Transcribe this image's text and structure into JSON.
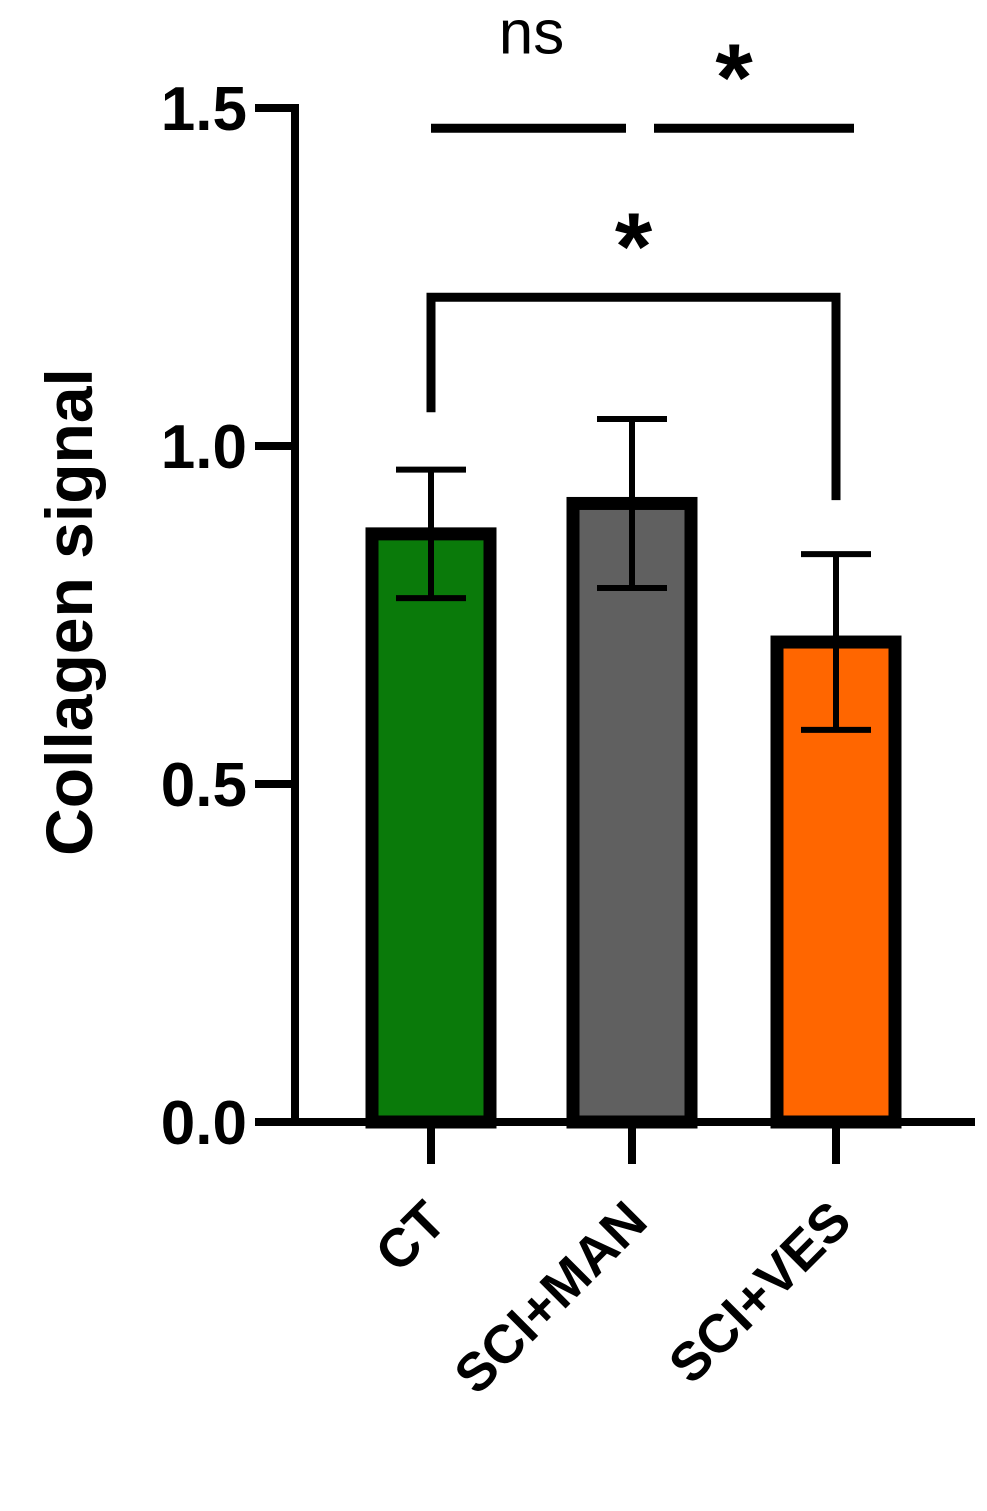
{
  "chart_data": {
    "type": "bar",
    "ylabel": "Collagen signal",
    "xlabel": "",
    "ylim": [
      0,
      1.5
    ],
    "yticks": [
      "0.0",
      "0.5",
      "1.0",
      "1.5"
    ],
    "categories": [
      "CT",
      "SCI+MAN",
      "SCI+VES"
    ],
    "values": [
      0.87,
      0.915,
      0.71
    ],
    "errors": [
      0.095,
      0.125,
      0.13
    ],
    "colors": [
      "#0a7a0a",
      "#606060",
      "#ff6600"
    ],
    "grid": false,
    "significance": [
      {
        "from": "CT",
        "to": "SCI+MAN",
        "label": "ns",
        "y": 1.47
      },
      {
        "from": "SCI+MAN",
        "to": "SCI+VES",
        "label": "*",
        "y": 1.47
      },
      {
        "from": "CT",
        "to": "SCI+VES",
        "label": "*",
        "y": 1.22
      }
    ]
  }
}
